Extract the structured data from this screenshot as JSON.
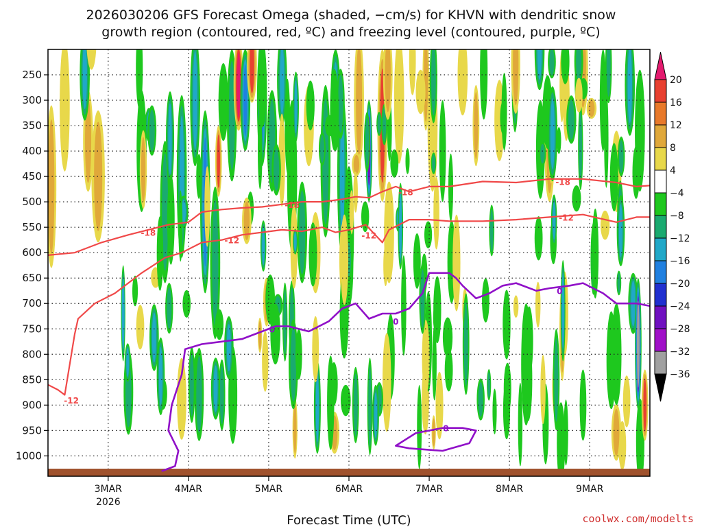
{
  "chart_data": {
    "type": "heatmap",
    "title_line1": "2026030206 GFS Forecast Omega (shaded, −cm/s) for KHVN with dendritic snow",
    "title_line2": "growth region (contoured, red, ºC) and freezing level (contoured, purple, ºC)",
    "xlabel": "Forecast Time (UTC)",
    "credit": "coolwx.com/modelts",
    "x_ticks": [
      {
        "label": "3MAR",
        "sub": "2026",
        "t": 18
      },
      {
        "label": "4MAR",
        "sub": "",
        "t": 42
      },
      {
        "label": "5MAR",
        "sub": "",
        "t": 66
      },
      {
        "label": "6MAR",
        "sub": "",
        "t": 90
      },
      {
        "label": "7MAR",
        "sub": "",
        "t": 114
      },
      {
        "label": "8MAR",
        "sub": "",
        "t": 138
      },
      {
        "label": "9MAR",
        "sub": "",
        "t": 162
      }
    ],
    "x_range_hours": [
      0,
      180
    ],
    "y_range_hPa": [
      1040,
      200
    ],
    "y_ticks": [
      250,
      300,
      350,
      400,
      450,
      500,
      550,
      600,
      650,
      700,
      750,
      800,
      850,
      900,
      950,
      1000
    ],
    "colorbar": {
      "labels": [
        "20",
        "16",
        "12",
        "8",
        "4",
        "−4",
        "−8",
        "−12",
        "−16",
        "−20",
        "−24",
        "−28",
        "−32",
        "−36"
      ],
      "colors": [
        "#e31a6e",
        "#e84030",
        "#e8792a",
        "#e0a83a",
        "#e8d84a",
        "#ffffff",
        "#1ec81e",
        "#1aaa70",
        "#20a8c8",
        "#2080e0",
        "#2030d0",
        "#7010c0",
        "#a010c8",
        "#a0a0a0",
        "#000000"
      ]
    },
    "contours": {
      "dgz_warm": {
        "label": "-12",
        "color": "#f04848",
        "points": [
          [
            0,
            860
          ],
          [
            3,
            870
          ],
          [
            5,
            880
          ],
          [
            8,
            760
          ],
          [
            9,
            730
          ],
          [
            14,
            700
          ],
          [
            20,
            680
          ],
          [
            28,
            640
          ],
          [
            35,
            610
          ],
          [
            40,
            600
          ],
          [
            46,
            580
          ],
          [
            52,
            575
          ],
          [
            58,
            565
          ],
          [
            64,
            560
          ],
          [
            70,
            555
          ],
          [
            76,
            558
          ],
          [
            82,
            550
          ],
          [
            86,
            560
          ],
          [
            90,
            555
          ],
          [
            95,
            545
          ],
          [
            100,
            580
          ],
          [
            102,
            555
          ],
          [
            108,
            535
          ],
          [
            114,
            535
          ],
          [
            120,
            538
          ],
          [
            130,
            538
          ],
          [
            140,
            535
          ],
          [
            150,
            530
          ],
          [
            160,
            525
          ],
          [
            170,
            540
          ],
          [
            176,
            530
          ],
          [
            180,
            530
          ]
        ],
        "labels": [
          [
            7,
            890
          ],
          [
            55,
            575
          ],
          [
            96,
            565
          ],
          [
            155,
            530
          ]
        ]
      },
      "dgz_cold": {
        "label": "-18",
        "color": "#f04848",
        "points": [
          [
            0,
            605
          ],
          [
            8,
            600
          ],
          [
            16,
            580
          ],
          [
            24,
            565
          ],
          [
            30,
            555
          ],
          [
            36,
            545
          ],
          [
            42,
            540
          ],
          [
            46,
            520
          ],
          [
            52,
            515
          ],
          [
            58,
            512
          ],
          [
            64,
            510
          ],
          [
            70,
            505
          ],
          [
            76,
            500
          ],
          [
            82,
            500
          ],
          [
            88,
            495
          ],
          [
            92,
            490
          ],
          [
            96,
            492
          ],
          [
            100,
            480
          ],
          [
            104,
            470
          ],
          [
            108,
            480
          ],
          [
            114,
            470
          ],
          [
            120,
            470
          ],
          [
            130,
            460
          ],
          [
            140,
            462
          ],
          [
            150,
            455
          ],
          [
            160,
            455
          ],
          [
            170,
            462
          ],
          [
            176,
            470
          ],
          [
            180,
            468
          ]
        ],
        "labels": [
          [
            30,
            560
          ],
          [
            73,
            505
          ],
          [
            107,
            480
          ],
          [
            154,
            460
          ]
        ]
      },
      "freezing": {
        "label": "0",
        "color": "#9010c8",
        "points": [
          [
            34,
            1030
          ],
          [
            38,
            1020
          ],
          [
            39,
            990
          ],
          [
            36,
            950
          ],
          [
            37,
            900
          ],
          [
            40,
            840
          ],
          [
            41,
            790
          ],
          [
            46,
            780
          ],
          [
            52,
            775
          ],
          [
            58,
            770
          ],
          [
            64,
            755
          ],
          [
            68,
            745
          ],
          [
            72,
            745
          ],
          [
            78,
            755
          ],
          [
            84,
            735
          ],
          [
            88,
            710
          ],
          [
            92,
            700
          ],
          [
            96,
            730
          ],
          [
            100,
            720
          ],
          [
            104,
            720
          ],
          [
            108,
            710
          ],
          [
            112,
            680
          ],
          [
            114,
            640
          ],
          [
            118,
            640
          ],
          [
            120,
            640
          ],
          [
            122,
            650
          ],
          [
            124,
            665
          ],
          [
            128,
            690
          ],
          [
            132,
            680
          ],
          [
            136,
            665
          ],
          [
            140,
            660
          ],
          [
            146,
            675
          ],
          [
            150,
            670
          ],
          [
            156,
            665
          ],
          [
            160,
            660
          ],
          [
            166,
            680
          ],
          [
            170,
            700
          ],
          [
            176,
            700
          ],
          [
            180,
            705
          ]
        ],
        "labels": [
          [
            67,
            750
          ],
          [
            104,
            735
          ],
          [
            153,
            675
          ]
        ]
      },
      "freezing_blob": {
        "color": "#9010c8",
        "points": [
          [
            104,
            980
          ],
          [
            110,
            955
          ],
          [
            118,
            945
          ],
          [
            124,
            945
          ],
          [
            128,
            950
          ],
          [
            126,
            975
          ],
          [
            118,
            990
          ],
          [
            108,
            985
          ],
          [
            104,
            980
          ]
        ],
        "labels": [
          [
            119,
            945
          ]
        ]
      }
    }
  }
}
